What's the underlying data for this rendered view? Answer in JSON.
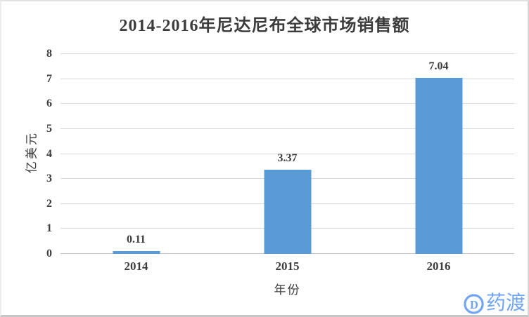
{
  "chart_data": {
    "type": "bar",
    "title": "2014-2016年尼达尼布全球市场销售额",
    "categories": [
      "2014",
      "2015",
      "2016"
    ],
    "values": [
      0.11,
      3.37,
      7.04
    ],
    "data_labels": [
      "0.11",
      "3.37",
      "7.04"
    ],
    "xlabel": "年份",
    "ylabel": "亿美元",
    "ylim": [
      0,
      8
    ],
    "yticks": [
      0,
      1,
      2,
      3,
      4,
      5,
      6,
      7,
      8
    ],
    "grid": true,
    "legend": "none",
    "bar_color": "#5B9BD5",
    "gridline_color": "#D9D9D9",
    "axis_line_color": "#C3C3C3",
    "text_color": "#3D3D3D"
  },
  "watermark": {
    "brand_text": "药渡",
    "icon": "pharmacodia-d-icon",
    "color": "#6FA3F4"
  }
}
